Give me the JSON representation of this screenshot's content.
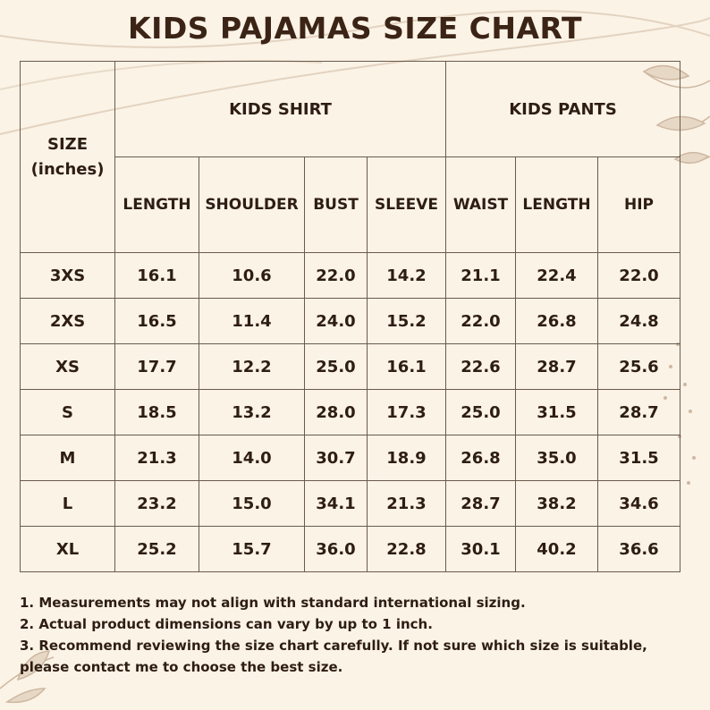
{
  "title": "KIDS PAJAMAS SIZE CHART",
  "table": {
    "size_header_line1": "SIZE",
    "size_header_line2": "(inches)",
    "groups": {
      "shirt": "KIDS SHIRT",
      "pants": "KIDS PANTS"
    },
    "columns": [
      "LENGTH",
      "SHOULDER",
      "BUST",
      "SLEEVE",
      "WAIST",
      "LENGTH",
      "HIP"
    ],
    "rows": [
      {
        "size": "3XS",
        "values": [
          "16.1",
          "10.6",
          "22.0",
          "14.2",
          "21.1",
          "22.4",
          "22.0"
        ]
      },
      {
        "size": "2XS",
        "values": [
          "16.5",
          "11.4",
          "24.0",
          "15.2",
          "22.0",
          "26.8",
          "24.8"
        ]
      },
      {
        "size": "XS",
        "values": [
          "17.7",
          "12.2",
          "25.0",
          "16.1",
          "22.6",
          "28.7",
          "25.6"
        ]
      },
      {
        "size": "S",
        "values": [
          "18.5",
          "13.2",
          "28.0",
          "17.3",
          "25.0",
          "31.5",
          "28.7"
        ]
      },
      {
        "size": "M",
        "values": [
          "21.3",
          "14.0",
          "30.7",
          "18.9",
          "26.8",
          "35.0",
          "31.5"
        ]
      },
      {
        "size": "L",
        "values": [
          "23.2",
          "15.0",
          "34.1",
          "21.3",
          "28.7",
          "38.2",
          "34.6"
        ]
      },
      {
        "size": "XL",
        "values": [
          "25.2",
          "15.7",
          "36.0",
          "22.8",
          "30.1",
          "40.2",
          "36.6"
        ]
      }
    ]
  },
  "notes": [
    "1. Measurements may not align with standard international sizing.",
    "2. Actual product dimensions can vary by up to 1 inch.",
    "3. Recommend reviewing the size chart carefully. If not sure which size is suitable, please contact me to choose the best size."
  ],
  "colors": {
    "background": "#fbf3e6",
    "text": "#3b2416",
    "border": "#6b5a4c",
    "decor": "#d9c7b3"
  }
}
